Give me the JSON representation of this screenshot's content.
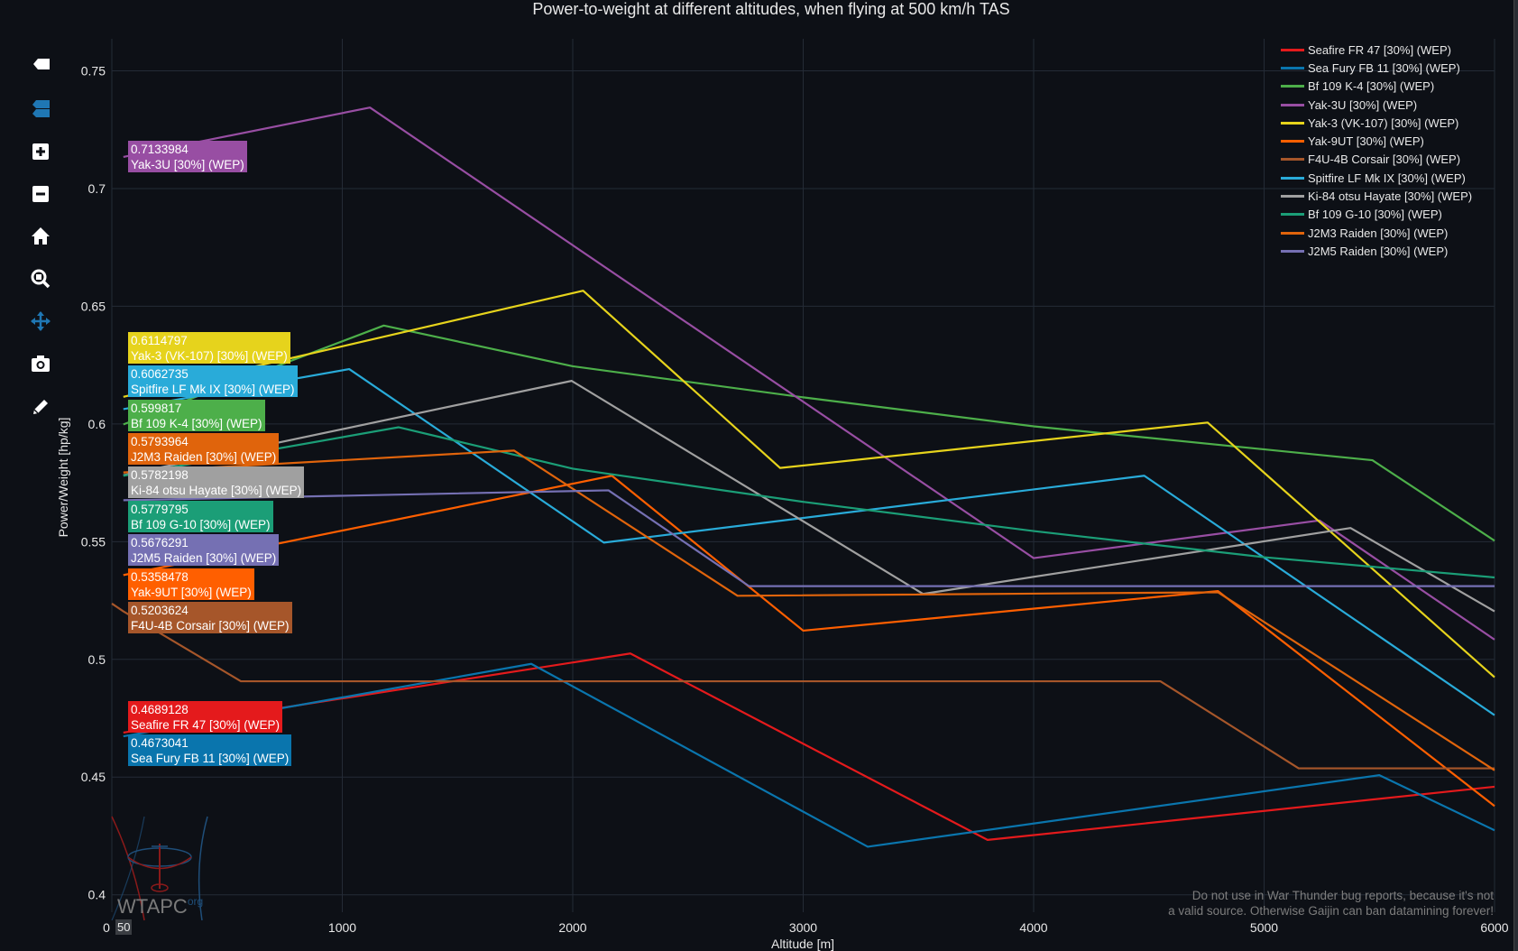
{
  "toolbar": {
    "buttons": [
      {
        "name": "show-closest-data-button",
        "icon": "tag-icon",
        "active": false
      },
      {
        "name": "compare-data-button",
        "icon": "double-tag-icon",
        "active": true
      },
      {
        "name": "zoom-in-button",
        "icon": "plus-square-icon",
        "active": false
      },
      {
        "name": "zoom-out-button",
        "icon": "minus-square-icon",
        "active": false
      },
      {
        "name": "reset-axes-button",
        "icon": "home-icon",
        "active": false
      },
      {
        "name": "box-zoom-button",
        "icon": "magnifier-icon",
        "active": false
      },
      {
        "name": "pan-button",
        "icon": "move-arrows-icon",
        "active": true
      },
      {
        "name": "download-png-button",
        "icon": "camera-icon",
        "active": false
      },
      {
        "name": "draw-button",
        "icon": "pencil-icon",
        "active": false
      }
    ]
  },
  "hover_x_label": "50",
  "watermark": {
    "logo_text": "WTAPC",
    "logo_suffix": "org"
  },
  "disclaimer": {
    "line1": "Do not use in War Thunder bug reports, because it's not",
    "line2": "a valid source. Otherwise Gaijin can ban datamining forever!"
  },
  "chart_data": {
    "type": "line",
    "title": "Power-to-weight at different altitudes, when flying at 500 km/h TAS",
    "xlabel": "Altitude [m]",
    "ylabel": "Power/Weight [hp/kg]",
    "xlim": [
      0,
      6000
    ],
    "ylim": [
      0.3926,
      0.7636
    ],
    "xticks": [
      "0",
      "1000",
      "2000",
      "3000",
      "4000",
      "5000",
      "6000"
    ],
    "xtick_values": [
      0,
      1000,
      2000,
      3000,
      4000,
      5000,
      6000
    ],
    "yticks": [
      "0.4",
      "0.45",
      "0.5",
      "0.55",
      "0.6",
      "0.65",
      "0.7",
      "0.75"
    ],
    "ytick_values": [
      0.4,
      0.45,
      0.5,
      0.55,
      0.6,
      0.65,
      0.7,
      0.75
    ],
    "grid": true,
    "legend_position": "top-right",
    "hover_altitude": 50,
    "series": [
      {
        "name": "Seafire FR 47 [30%] (WEP)",
        "color": "#e41a1c",
        "hover_value": "0.4689128",
        "x": [
          50,
          2250,
          3800,
          6000
        ],
        "y": [
          0.4689,
          0.5025,
          0.4233,
          0.4459
        ]
      },
      {
        "name": "Sea Fury FB 11 [30%] (WEP)",
        "color": "#0a75ad",
        "hover_value": "0.4673041",
        "x": [
          50,
          1820,
          3280,
          5500,
          6000
        ],
        "y": [
          0.4673,
          0.4981,
          0.4204,
          0.4508,
          0.4274
        ]
      },
      {
        "name": "Bf 109 K-4 [30%] (WEP)",
        "color": "#4daf4a",
        "hover_value": "0.599817",
        "x": [
          50,
          1180,
          2000,
          3000,
          4000,
          5470,
          6000
        ],
        "y": [
          0.5998,
          0.6418,
          0.6245,
          0.6113,
          0.599,
          0.5846,
          0.5504
        ]
      },
      {
        "name": "Yak-3U [30%] (WEP)",
        "color": "#984ea3",
        "hover_value": "0.7133984",
        "x": [
          50,
          1120,
          4000,
          5240,
          6000
        ],
        "y": [
          0.7134,
          0.7344,
          0.543,
          0.559,
          0.5084
        ]
      },
      {
        "name": "Yak-3 (VK-107) [30%] (WEP)",
        "color": "#e6d31c",
        "hover_value": "0.6114797",
        "x": [
          50,
          2045,
          2900,
          4755,
          6000
        ],
        "y": [
          0.6115,
          0.6566,
          0.5813,
          0.6006,
          0.4924
        ]
      },
      {
        "name": "Yak-9UT [30%] (WEP)",
        "color": "#ff5f00",
        "hover_value": "0.5358478",
        "x": [
          50,
          2170,
          3000,
          4800,
          6000
        ],
        "y": [
          0.5358,
          0.578,
          0.5122,
          0.529,
          0.4377
        ]
      },
      {
        "name": "F4U-4B Corsair [30%] (WEP)",
        "color": "#a6562a",
        "hover_value": "0.5203624",
        "x": [
          0,
          50,
          560,
          4550,
          5150,
          6000
        ],
        "y": [
          0.5237,
          0.5204,
          0.4907,
          0.4907,
          0.4537,
          0.4537
        ]
      },
      {
        "name": "Spitfire LF Mk IX [30%] (WEP)",
        "color": "#29abd9",
        "hover_value": "0.6062735",
        "x": [
          50,
          1030,
          2135,
          4480,
          6000
        ],
        "y": [
          0.6063,
          0.6233,
          0.5496,
          0.578,
          0.4763
        ]
      },
      {
        "name": "Ki-84 otsu Hayate [30%] (WEP)",
        "color": "#a0a0a0",
        "hover_value": "0.5782198",
        "x": [
          50,
          1995,
          3520,
          5375,
          6000
        ],
        "y": [
          0.5782,
          0.6183,
          0.5278,
          0.5558,
          0.5204
        ]
      },
      {
        "name": "Bf 109 G-10 [30%] (WEP)",
        "color": "#1b9e77",
        "hover_value": "0.5779795",
        "x": [
          50,
          1245,
          2000,
          3000,
          4000,
          5000,
          6000
        ],
        "y": [
          0.578,
          0.5986,
          0.581,
          0.5669,
          0.5545,
          0.5434,
          0.5348
        ]
      },
      {
        "name": "J2M3 Raiden [30%] (WEP)",
        "color": "#e0640c",
        "hover_value": "0.5793964",
        "x": [
          50,
          1745,
          2715,
          4800,
          6000
        ],
        "y": [
          0.5794,
          0.5887,
          0.527,
          0.5285,
          0.4529
        ]
      },
      {
        "name": "J2M5 Raiden [30%] (WEP)",
        "color": "#7570b3",
        "hover_value": "0.5676291",
        "x": [
          50,
          2155,
          2765,
          6000
        ],
        "y": [
          0.5676,
          0.5718,
          0.5311,
          0.5311
        ]
      }
    ],
    "hover_order": [
      3,
      4,
      7,
      2,
      10,
      8,
      9,
      11,
      5,
      6,
      0,
      1
    ]
  }
}
